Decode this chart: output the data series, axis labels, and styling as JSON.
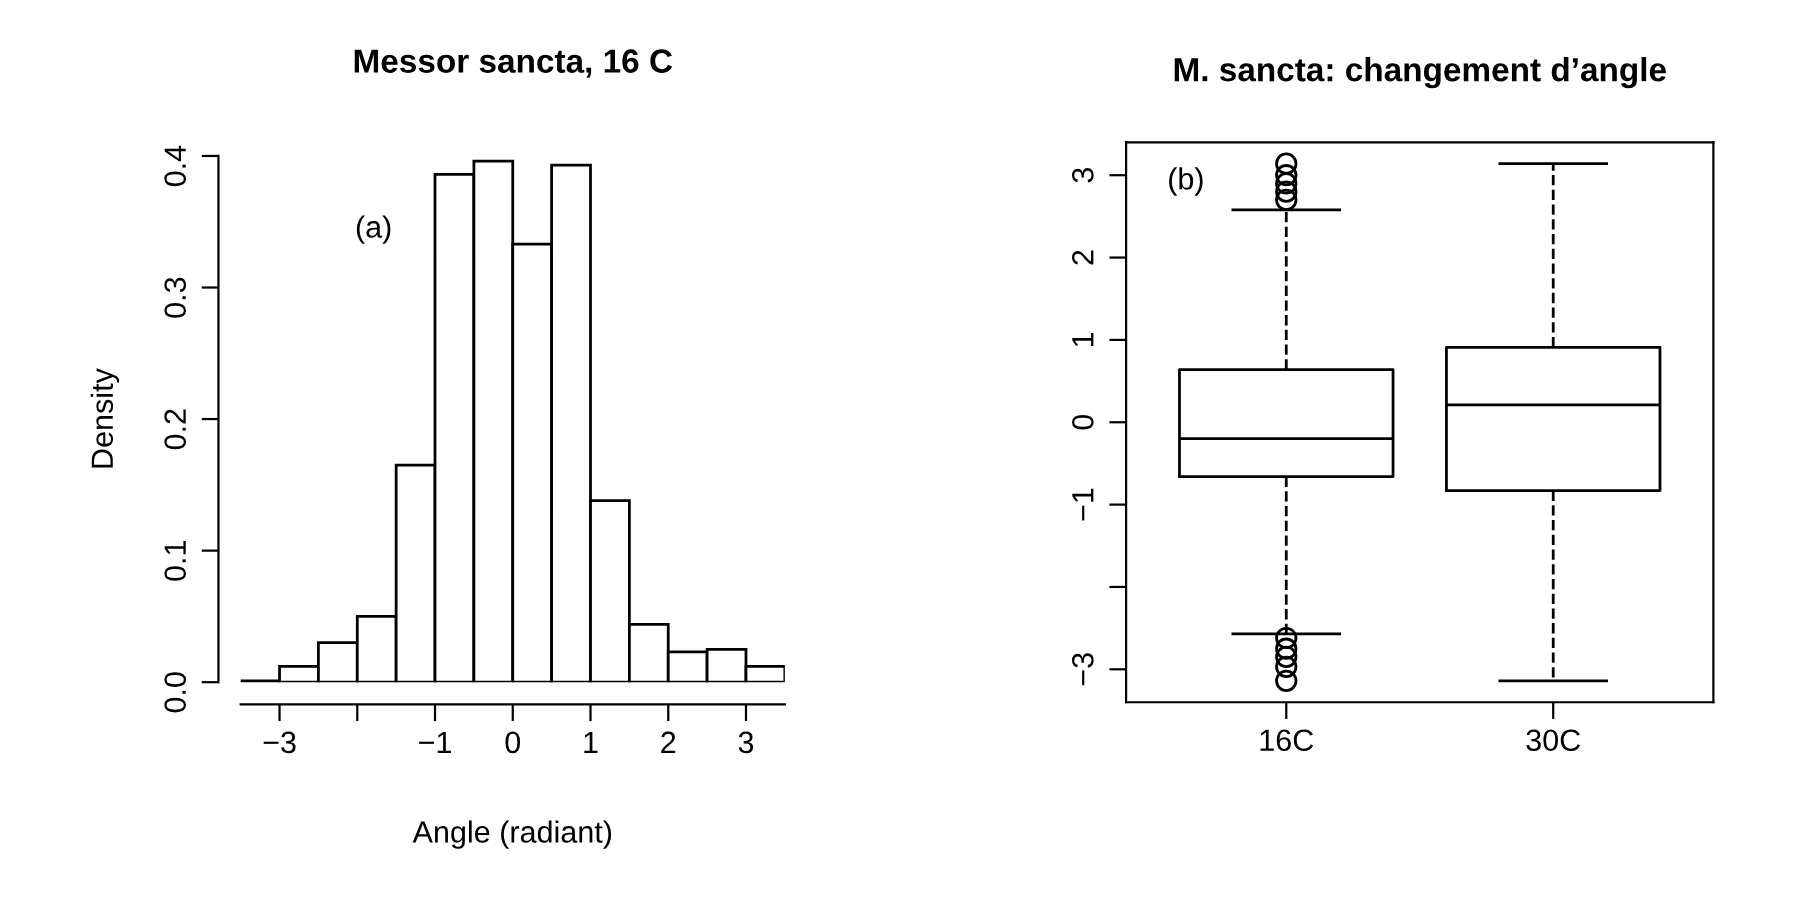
{
  "chart_data": [
    {
      "type": "histogram",
      "title": "Messor sancta, 16 C",
      "xlabel": "Angle (radiant)",
      "ylabel": "Density",
      "annotations": [
        "(a)"
      ],
      "bins": [
        -3.5,
        -3.0,
        -2.5,
        -2.0,
        -1.5,
        -1.0,
        -0.5,
        0.0,
        0.5,
        1.0,
        1.5,
        2.0,
        2.5,
        3.0,
        3.5
      ],
      "values": [
        0.001,
        0.012,
        0.03,
        0.05,
        0.165,
        0.386,
        0.396,
        0.333,
        0.393,
        0.138,
        0.044,
        0.023,
        0.025,
        0.012
      ],
      "color": "#ffffff",
      "xlim": [
        -3.5,
        3.5
      ],
      "xticks": [
        -3,
        {
          "value": -2,
          "label": null
        },
        -1,
        0,
        1,
        2,
        3
      ],
      "ylim": [
        0,
        0.4
      ],
      "yticks": [
        {
          "value": 0,
          "label": "0.0"
        },
        0.1,
        0.2,
        0.3,
        0.4
      ],
      "grid": false
    },
    {
      "type": "box",
      "title": "M. sancta: changement d’angle",
      "annotations": [
        "(b)"
      ],
      "categories": [
        "16C",
        "30C"
      ],
      "boxes": [
        {
          "low": -2.57,
          "q1": -0.66,
          "median": -0.2,
          "q3": 0.64,
          "high": 2.58,
          "outliers": [
            2.7,
            2.8,
            2.9,
            3.0,
            3.14,
            -2.62,
            -2.75,
            -2.85,
            -2.97,
            -3.14
          ]
        },
        {
          "low": -3.14,
          "q1": -0.83,
          "median": 0.21,
          "q3": 0.91,
          "high": 3.14
        }
      ],
      "ylim": [
        -3.4,
        3.4
      ],
      "yticks": [
        -3,
        {
          "value": -2,
          "label": null
        },
        -1,
        0,
        1,
        2,
        3
      ],
      "grid": false,
      "line_style": "dashed"
    }
  ]
}
